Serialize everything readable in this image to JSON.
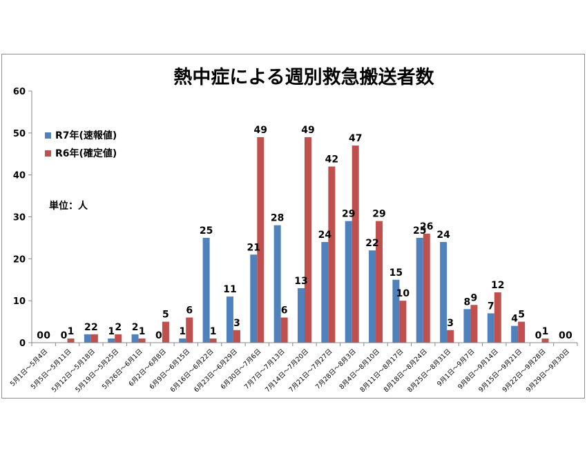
{
  "chart_data": {
    "type": "bar",
    "title": "熱中症による週別救急搬送者数",
    "unit_label": "単位：人",
    "ylim": [
      0,
      60
    ],
    "yticks": [
      0,
      10,
      20,
      30,
      40,
      50,
      60
    ],
    "grid": false,
    "legend_position": "top-left",
    "categories": [
      "5月1日～5月4日",
      "5月5日～5月11日",
      "5月12日～5月18日",
      "5月19日～5月25日",
      "5月26日～6月1日",
      "6月2日～6月8日",
      "6月9日～6月15日",
      "6月16日～6月22日",
      "6月23日～6月29日",
      "6月30日～7月6日",
      "7月7日～7月13日",
      "7月14日～7月20日",
      "7月21日～7月27日",
      "7月28日～8月3日",
      "8月4日～8月10日",
      "8月11日～8月17日",
      "8月18日～8月24日",
      "8月25日～8月31日",
      "9月1日～9月7日",
      "9月8日～9月14日",
      "9月15日～9月21日",
      "9月22日～9月28日",
      "9月29日～9月30日"
    ],
    "series": [
      {
        "name": "R7年(速報値)",
        "color": "#4f81bd",
        "values": [
          0,
          0,
          2,
          1,
          2,
          0,
          1,
          25,
          11,
          21,
          28,
          13,
          24,
          29,
          22,
          15,
          25,
          24,
          8,
          7,
          4,
          0,
          0
        ]
      },
      {
        "name": "R6年(確定値)",
        "color": "#c0504d",
        "values": [
          0,
          1,
          2,
          2,
          1,
          5,
          6,
          1,
          3,
          49,
          6,
          49,
          42,
          47,
          29,
          10,
          26,
          3,
          9,
          12,
          5,
          1,
          0
        ]
      }
    ]
  }
}
